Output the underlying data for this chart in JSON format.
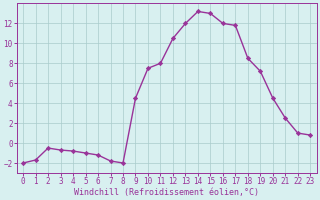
{
  "x": [
    0,
    1,
    2,
    3,
    4,
    5,
    6,
    7,
    8,
    9,
    10,
    11,
    12,
    13,
    14,
    15,
    16,
    17,
    18,
    19,
    20,
    21,
    22,
    23
  ],
  "y": [
    -2.0,
    -1.7,
    -0.5,
    -0.7,
    -0.8,
    -1.0,
    -1.2,
    -1.8,
    -2.0,
    4.5,
    7.5,
    8.0,
    10.5,
    12.0,
    13.2,
    13.0,
    12.0,
    11.8,
    8.5,
    7.2,
    4.5,
    2.5,
    1.0,
    0.8
  ],
  "line_color": "#993399",
  "marker": "D",
  "marker_size": 2.2,
  "bg_color": "#d8f0f0",
  "grid_color": "#aacccc",
  "xlabel": "Windchill (Refroidissement éolien,°C)",
  "xlim": [
    -0.5,
    23.5
  ],
  "ylim": [
    -3,
    14
  ],
  "xticks": [
    0,
    1,
    2,
    3,
    4,
    5,
    6,
    7,
    8,
    9,
    10,
    11,
    12,
    13,
    14,
    15,
    16,
    17,
    18,
    19,
    20,
    21,
    22,
    23
  ],
  "yticks": [
    -2,
    0,
    2,
    4,
    6,
    8,
    10,
    12
  ],
  "axis_color": "#993399",
  "tick_color": "#993399",
  "grid_linewidth": 0.5,
  "line_width": 1.0,
  "tick_fontsize": 5.5,
  "xlabel_fontsize": 6.0
}
